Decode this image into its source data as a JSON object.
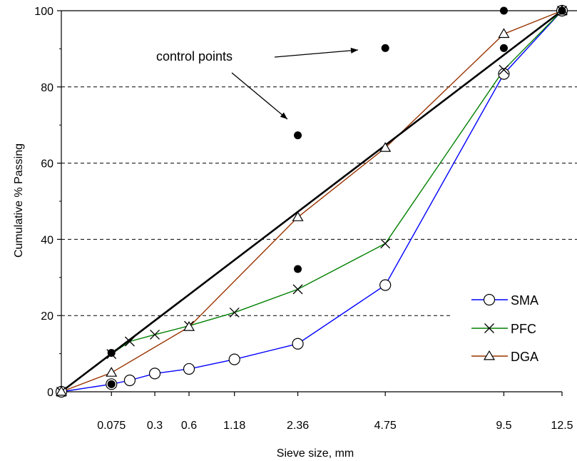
{
  "chart_data": {
    "type": "line",
    "xlabel": "Sieve size, mm",
    "ylabel": "Cumulative % Passing",
    "ylim": [
      0,
      100
    ],
    "x_scale": "power-0.45",
    "y_ticks": [
      0,
      20,
      40,
      60,
      80,
      100
    ],
    "x_tick_labels": [
      {
        "x": 0.075,
        "label": "0.075"
      },
      {
        "x": 0.3,
        "label": "0.3"
      },
      {
        "x": 0.6,
        "label": "0.6"
      },
      {
        "x": 1.18,
        "label": "1.18"
      },
      {
        "x": 2.36,
        "label": "2.36"
      },
      {
        "x": 4.75,
        "label": "4.75"
      },
      {
        "x": 9.5,
        "label": "9.5"
      },
      {
        "x": 12.5,
        "label": "12.5"
      }
    ],
    "grid": "dashed horizontal lines at 20, 40, 60, 80",
    "legend_position": "bottom-right",
    "series": [
      {
        "name": "SMA",
        "color": "#0000ff",
        "marker": "circle",
        "points": [
          [
            0,
            0
          ],
          [
            0.075,
            2
          ],
          [
            0.15,
            3
          ],
          [
            0.3,
            4.8
          ],
          [
            0.6,
            6
          ],
          [
            1.18,
            8.5
          ],
          [
            2.36,
            12.6
          ],
          [
            4.75,
            28
          ],
          [
            9.5,
            83.4
          ],
          [
            12.5,
            100
          ]
        ]
      },
      {
        "name": "PFC",
        "color": "#008000",
        "marker": "x",
        "points": [
          [
            0,
            0
          ],
          [
            0.075,
            9.9
          ],
          [
            0.15,
            13.2
          ],
          [
            0.3,
            15
          ],
          [
            0.6,
            17.3
          ],
          [
            1.18,
            20.8
          ],
          [
            2.36,
            26.9
          ],
          [
            4.75,
            38.9
          ],
          [
            9.5,
            84.5
          ],
          [
            12.5,
            100
          ]
        ]
      },
      {
        "name": "DGA",
        "color": "#993300",
        "marker": "triangle",
        "points": [
          [
            0,
            0
          ],
          [
            0.075,
            5
          ],
          [
            0.6,
            17
          ],
          [
            2.36,
            45.8
          ],
          [
            4.75,
            64
          ],
          [
            9.5,
            93.9
          ],
          [
            12.5,
            100
          ]
        ]
      },
      {
        "name": "",
        "color": "#000000",
        "marker": "none",
        "points": [
          [
            0,
            0
          ],
          [
            12.5,
            100
          ]
        ]
      }
    ],
    "control_points": [
      {
        "x": 0.075,
        "y": 10.2
      },
      {
        "x": 0.075,
        "y": 2
      },
      {
        "x": 2.36,
        "y": 67.3
      },
      {
        "x": 2.36,
        "y": 32.2
      },
      {
        "x": 4.75,
        "y": 90.2
      },
      {
        "x": 9.5,
        "y": 100
      },
      {
        "x": 9.5,
        "y": 90.2
      },
      {
        "x": 12.5,
        "y": 100
      }
    ],
    "annotation": "control points"
  }
}
